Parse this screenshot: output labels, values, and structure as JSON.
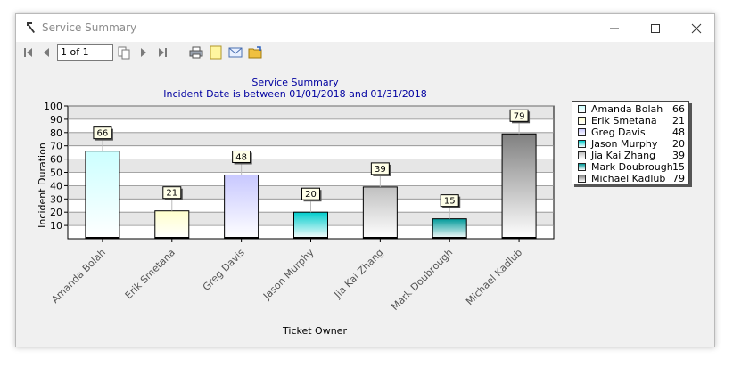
{
  "window": {
    "title": "Service Summary"
  },
  "toolbar": {
    "page_value": "1 of 1",
    "buttons": [
      {
        "name": "first-page",
        "icon": "first-page-icon"
      },
      {
        "name": "prev-page",
        "icon": "prev-page-icon"
      },
      {
        "name": "copy",
        "icon": "copy-icon"
      },
      {
        "name": "next-page",
        "icon": "next-page-icon"
      },
      {
        "name": "last-page",
        "icon": "last-page-icon"
      },
      {
        "name": "print",
        "icon": "printer-icon"
      },
      {
        "name": "export",
        "icon": "note-icon"
      },
      {
        "name": "email",
        "icon": "envelope-icon"
      },
      {
        "name": "open",
        "icon": "folder-icon"
      }
    ]
  },
  "chart_data": {
    "type": "bar",
    "title": "Service Summary",
    "subtitle": "Incident Date is between 01/01/2018 and 01/31/2018",
    "xlabel": "Ticket Owner",
    "ylabel": "Incident Duration",
    "ylim": [
      0,
      100
    ],
    "yticks": [
      10,
      20,
      30,
      40,
      50,
      60,
      70,
      80,
      90,
      100
    ],
    "grid": true,
    "legend_position": "right",
    "categories": [
      "Amanda Bolah",
      "Erik Smetana",
      "Greg Davis",
      "Jason Murphy",
      "Jia Kai Zhang",
      "Mark Doubrough",
      "Michael Kadlub"
    ],
    "values": [
      66,
      21,
      48,
      20,
      39,
      15,
      79
    ],
    "colors": [
      {
        "top": "#ccffff",
        "bottom": "#ffffff"
      },
      {
        "top": "#ffffcc",
        "bottom": "#ffffff"
      },
      {
        "top": "#c8c8ff",
        "bottom": "#ffffff"
      },
      {
        "top": "#00cccc",
        "bottom": "#ffffff"
      },
      {
        "top": "#c0c0c0",
        "bottom": "#ffffff"
      },
      {
        "top": "#009999",
        "bottom": "#ffffff"
      },
      {
        "top": "#808080",
        "bottom": "#ffffff"
      }
    ],
    "title_color": "#0000a0"
  }
}
